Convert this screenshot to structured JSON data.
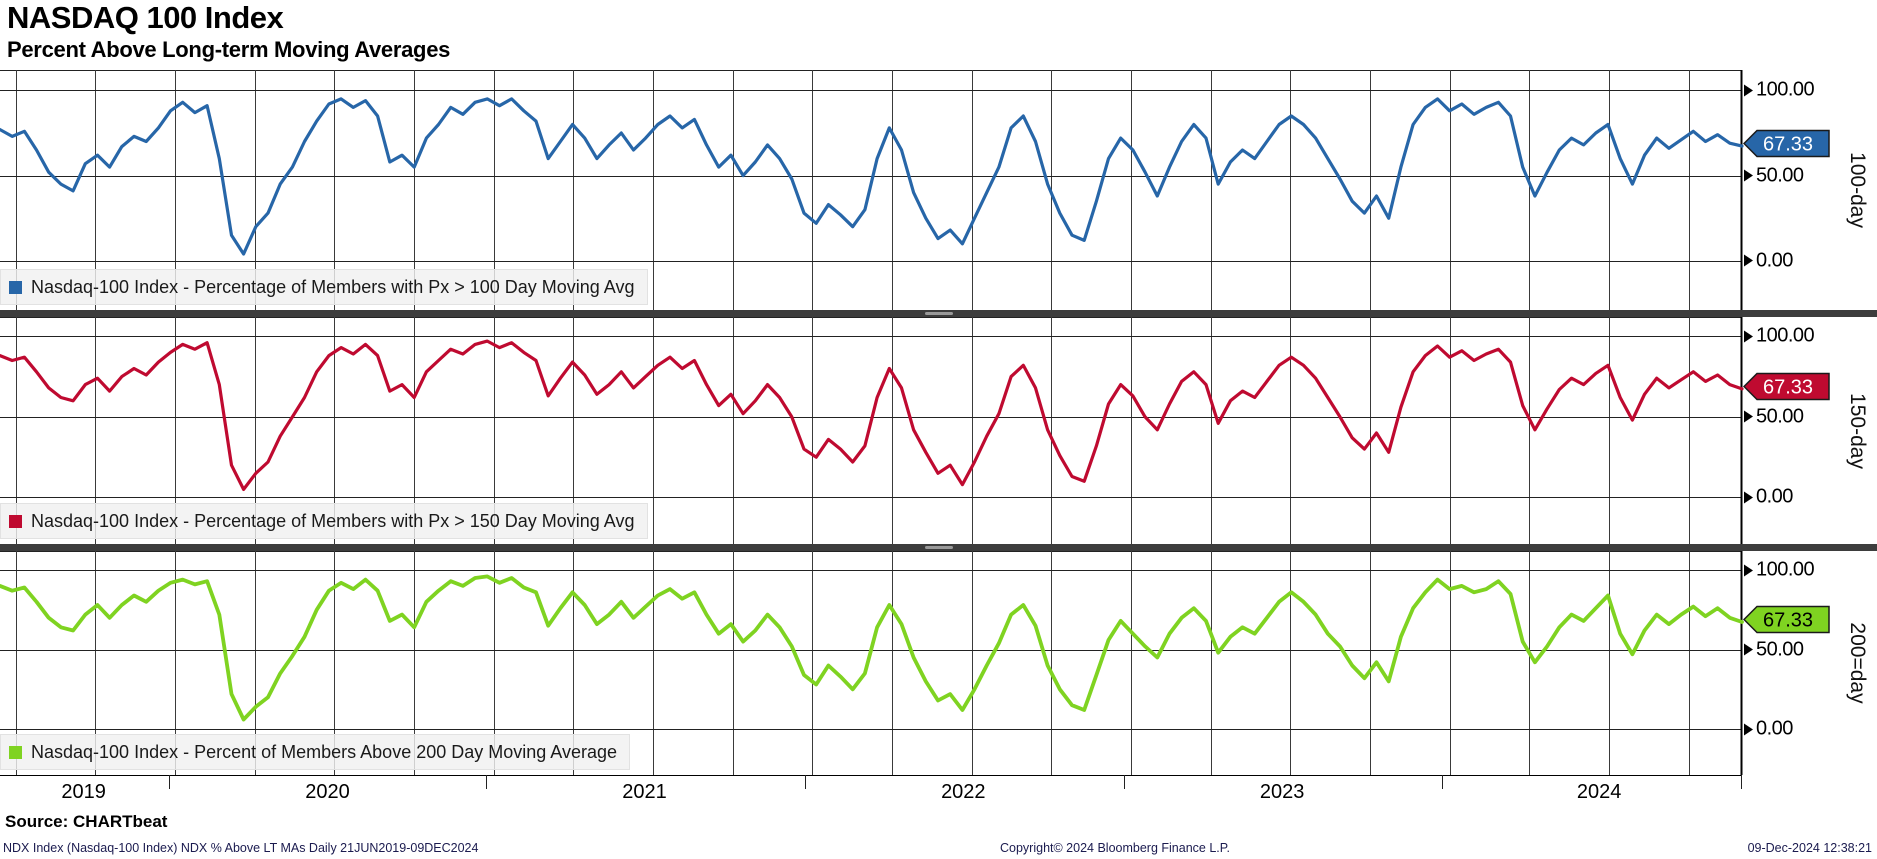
{
  "header": {
    "title": "NASDAQ 100 Index",
    "subtitle": "Percent Above Long-term Moving Averages"
  },
  "source_line": "Source: CHARTbeat",
  "footer": {
    "left": "NDX Index (Nasdaq-100 Index) NDX % Above LT MAs  Daily 21JUN2019-09DEC2024",
    "center": "Copyright© 2024 Bloomberg Finance L.P.",
    "right": "09-Dec-2024 12:38:21"
  },
  "x_axis": {
    "year_labels": [
      {
        "label": "2019",
        "x_pct": 4.8
      },
      {
        "label": "2020",
        "x_pct": 18.8
      },
      {
        "label": "2021",
        "x_pct": 37.0
      },
      {
        "label": "2022",
        "x_pct": 55.3
      },
      {
        "label": "2023",
        "x_pct": 73.6
      },
      {
        "label": "2024",
        "x_pct": 91.8
      }
    ],
    "boundary_ticks_pct": [
      9.7,
      27.9,
      46.2,
      64.5,
      82.8,
      99.95
    ],
    "range": "21JUN2019-09DEC2024"
  },
  "chart_data": [
    {
      "type": "line",
      "panel": "100-day",
      "axis_title": "100-day",
      "legend": "Nasdaq-100 Index - Percentage of Members with Px > 100 Day Moving Avg",
      "color": "#2766a8",
      "badge": {
        "value": "67.33",
        "text_color": "#ffffff"
      },
      "last_value": 67.33,
      "yticks": [
        {
          "label": "100.00",
          "value": 100
        },
        {
          "label": "50.00",
          "value": 50
        },
        {
          "label": "0.00",
          "value": 0
        }
      ],
      "ylim": [
        0,
        100
      ],
      "x_range": [
        "21JUN2019",
        "09DEC2024"
      ],
      "values": [
        77,
        73,
        76,
        65,
        52,
        45,
        41,
        57,
        62,
        55,
        67,
        73,
        70,
        78,
        88,
        93,
        87,
        91,
        60,
        15,
        4,
        20,
        28,
        45,
        55,
        70,
        82,
        92,
        95,
        90,
        94,
        85,
        58,
        62,
        55,
        72,
        80,
        90,
        86,
        93,
        95,
        91,
        95,
        88,
        82,
        60,
        70,
        80,
        72,
        60,
        68,
        75,
        65,
        72,
        80,
        85,
        78,
        83,
        68,
        55,
        62,
        50,
        58,
        68,
        60,
        48,
        28,
        22,
        33,
        27,
        20,
        30,
        60,
        78,
        65,
        40,
        25,
        13,
        18,
        10,
        25,
        40,
        55,
        78,
        85,
        70,
        45,
        28,
        15,
        12,
        35,
        60,
        72,
        65,
        52,
        38,
        55,
        70,
        80,
        72,
        45,
        58,
        65,
        60,
        70,
        80,
        85,
        80,
        72,
        60,
        48,
        35,
        28,
        38,
        25,
        55,
        80,
        90,
        95,
        88,
        92,
        86,
        90,
        93,
        85,
        55,
        38,
        52,
        65,
        72,
        68,
        75,
        80,
        60,
        45,
        62,
        72,
        66,
        71,
        76,
        70,
        74,
        69,
        67.33
      ]
    },
    {
      "type": "line",
      "panel": "150-day",
      "axis_title": "150-day",
      "legend": "Nasdaq-100 Index - Percentage of Members with Px > 150 Day Moving Avg",
      "color": "#bf0a30",
      "badge": {
        "value": "67.33",
        "text_color": "#ffffff"
      },
      "last_value": 67.33,
      "yticks": [
        {
          "label": "100.00",
          "value": 100
        },
        {
          "label": "50.00",
          "value": 50
        },
        {
          "label": "0.00",
          "value": 0
        }
      ],
      "ylim": [
        0,
        100
      ],
      "x_range": [
        "21JUN2019",
        "09DEC2024"
      ],
      "values": [
        88,
        85,
        87,
        78,
        68,
        62,
        60,
        70,
        74,
        66,
        75,
        80,
        76,
        84,
        90,
        95,
        92,
        96,
        70,
        20,
        5,
        15,
        22,
        38,
        50,
        62,
        78,
        88,
        93,
        89,
        95,
        88,
        66,
        70,
        62,
        78,
        85,
        92,
        89,
        95,
        97,
        93,
        96,
        90,
        85,
        63,
        74,
        84,
        76,
        64,
        70,
        78,
        68,
        75,
        82,
        87,
        80,
        85,
        70,
        57,
        64,
        52,
        60,
        70,
        62,
        50,
        30,
        25,
        36,
        30,
        22,
        32,
        62,
        80,
        68,
        42,
        28,
        15,
        20,
        8,
        22,
        38,
        52,
        75,
        82,
        68,
        42,
        26,
        13,
        10,
        32,
        58,
        70,
        63,
        50,
        42,
        58,
        72,
        78,
        70,
        46,
        60,
        66,
        62,
        72,
        82,
        87,
        82,
        74,
        62,
        50,
        37,
        30,
        40,
        28,
        56,
        78,
        88,
        94,
        87,
        91,
        85,
        89,
        92,
        84,
        57,
        42,
        55,
        67,
        74,
        70,
        77,
        82,
        62,
        48,
        64,
        74,
        68,
        73,
        78,
        72,
        76,
        70,
        67.33
      ]
    },
    {
      "type": "line",
      "panel": "200-day",
      "axis_title": "200=day",
      "legend": "Nasdaq-100 Index - Percent of Members Above 200 Day Moving Average",
      "color": "#7fd321",
      "badge": {
        "value": "67.33",
        "text_color": "#000000"
      },
      "last_value": 67.33,
      "yticks": [
        {
          "label": "100.00",
          "value": 100
        },
        {
          "label": "50.00",
          "value": 50
        },
        {
          "label": "0.00",
          "value": 0
        }
      ],
      "ylim": [
        0,
        100
      ],
      "x_range": [
        "21JUN2019",
        "09DEC2024"
      ],
      "values": [
        90,
        87,
        89,
        80,
        70,
        64,
        62,
        72,
        78,
        70,
        78,
        84,
        80,
        87,
        92,
        94,
        91,
        93,
        72,
        22,
        6,
        14,
        20,
        35,
        46,
        58,
        75,
        87,
        92,
        88,
        94,
        87,
        68,
        72,
        64,
        80,
        87,
        93,
        90,
        95,
        96,
        92,
        95,
        89,
        86,
        65,
        76,
        86,
        78,
        66,
        72,
        80,
        70,
        77,
        84,
        88,
        82,
        86,
        72,
        60,
        66,
        55,
        62,
        72,
        64,
        52,
        34,
        28,
        40,
        33,
        25,
        35,
        64,
        78,
        66,
        45,
        30,
        18,
        22,
        12,
        25,
        40,
        54,
        72,
        78,
        65,
        40,
        25,
        15,
        12,
        34,
        56,
        68,
        60,
        52,
        45,
        60,
        70,
        76,
        68,
        48,
        58,
        64,
        60,
        70,
        80,
        86,
        80,
        72,
        60,
        52,
        40,
        32,
        42,
        30,
        58,
        76,
        86,
        94,
        88,
        90,
        86,
        88,
        93,
        85,
        55,
        42,
        52,
        64,
        72,
        68,
        76,
        84,
        60,
        47,
        62,
        72,
        66,
        72,
        77,
        71,
        76,
        70,
        67.33
      ]
    }
  ]
}
